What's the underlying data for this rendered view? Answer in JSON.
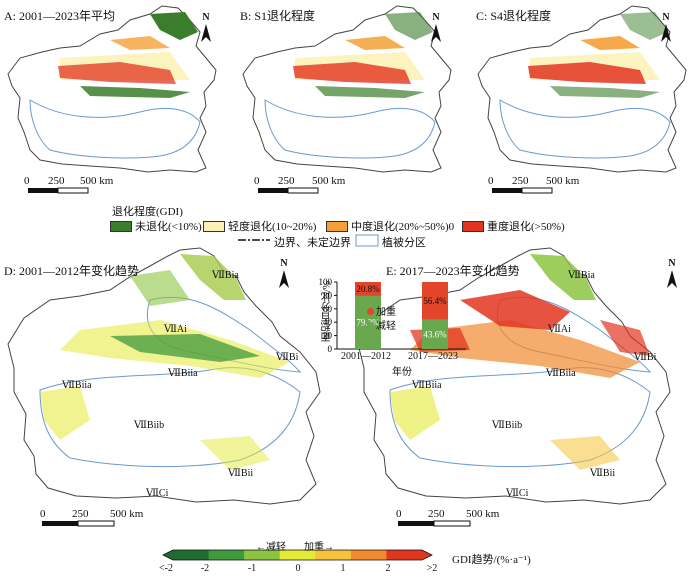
{
  "panels": {
    "a": {
      "title": "A: 2001—2023年平均"
    },
    "b": {
      "title": "B: S1退化程度"
    },
    "c": {
      "title": "C: S4退化程度"
    },
    "d": {
      "title": "D: 2001—2012年变化趋势"
    },
    "e": {
      "title": "E: 2017—2023年变化趋势"
    }
  },
  "north_label": "N",
  "scale": {
    "zero": "0",
    "mid": "250",
    "end": "500 km"
  },
  "legend": {
    "title": "退化程度(GDI)",
    "items": [
      {
        "label": "未退化(<10%)",
        "color": "#3a7d2a"
      },
      {
        "label": "轻度退化(10~20%)",
        "color": "#fbf1b4"
      },
      {
        "label": "中度退化(20%~50%)0",
        "color": "#f5a037"
      },
      {
        "label": "重度退化(>50%)",
        "color": "#e2351f"
      }
    ],
    "boundary": "边界、未定边界",
    "vegzone": "植被分区"
  },
  "regions": {
    "VIIBia": "ⅦBia",
    "VIIAi": "ⅦAi",
    "VIIBi": "ⅦBi",
    "VIIBiia": "ⅦBiia",
    "VIIBiib": "ⅦBiib",
    "VIIBii": "ⅦBii",
    "VIICi": "ⅦCi"
  },
  "inset": {
    "ylabel": "面积百分比/%",
    "xlabel": "年份",
    "yticks": [
      "0",
      "20",
      "40",
      "60",
      "80",
      "100"
    ],
    "legend_increase": "加重",
    "legend_decrease": "减轻"
  },
  "chart_data": {
    "type": "bar",
    "categories": [
      "2001—2012",
      "2017—2023"
    ],
    "series": [
      {
        "name": "减轻",
        "values": [
          79.2,
          43.6
        ],
        "color": "#6aa84f",
        "labels": [
          "79.2%",
          "43.6%"
        ]
      },
      {
        "name": "加重",
        "values": [
          20.8,
          56.4
        ],
        "color": "#e2452a",
        "labels": [
          "20.8%",
          "56.4%"
        ]
      }
    ],
    "stacked": true,
    "ylim": [
      0,
      100
    ],
    "ylabel": "面积百分比/%",
    "xlabel": "年份"
  },
  "colorbar": {
    "direction_decrease": "←减轻",
    "direction_increase": "加重→",
    "title": "GDI趋势/(%·a⁻¹)",
    "ticks": [
      "<-2",
      "-2",
      "-1",
      "0",
      "1",
      "2",
      ">2"
    ],
    "colors": [
      "#1f6b30",
      "#3f9a3c",
      "#8cc43f",
      "#e5ea35",
      "#f5c43a",
      "#f08a2d",
      "#e2351f"
    ]
  }
}
